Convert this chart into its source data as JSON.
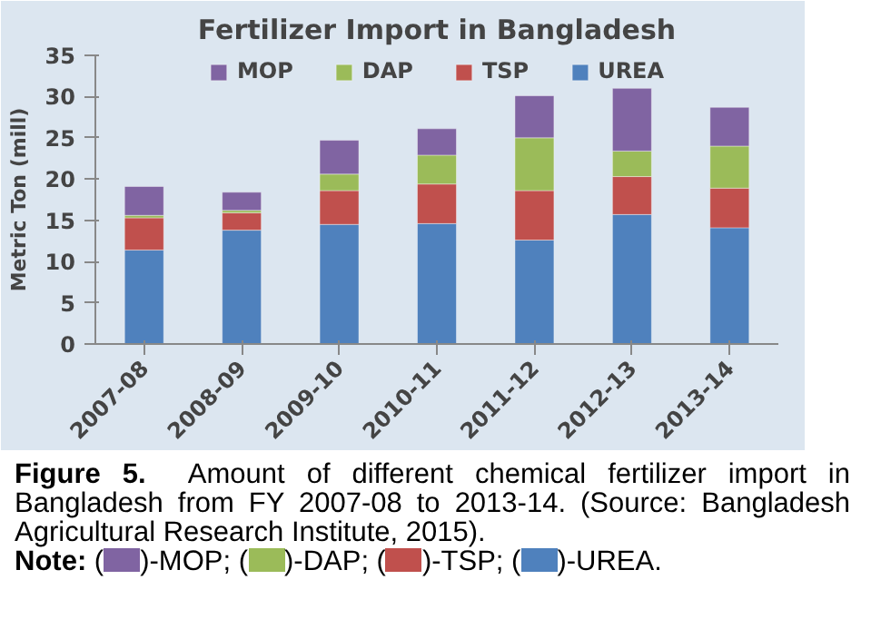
{
  "chart_data": {
    "type": "bar",
    "stacked": true,
    "title": "Fertilizer Import in Bangladesh",
    "ylabel": "Metric Ton (mill)",
    "categories": [
      "2007-08",
      "2008-09",
      "2009-10",
      "2010-11",
      "2011-12",
      "2012-13",
      "2013-14"
    ],
    "series": [
      {
        "name": "UREA",
        "color": "#4f81bd",
        "values": [
          11.4,
          13.8,
          14.5,
          14.6,
          12.6,
          15.7,
          14.1
        ]
      },
      {
        "name": "TSP",
        "color": "#c0504d",
        "values": [
          3.9,
          2.1,
          4.1,
          4.8,
          6.0,
          4.6,
          4.8
        ]
      },
      {
        "name": "DAP",
        "color": "#9bbb59",
        "values": [
          0.3,
          0.3,
          2.0,
          3.5,
          6.4,
          3.1,
          5.1
        ]
      },
      {
        "name": "MOP",
        "color": "#8064a2",
        "values": [
          3.5,
          2.2,
          4.1,
          3.2,
          5.1,
          7.6,
          4.7
        ]
      }
    ],
    "ylim": [
      0,
      35
    ],
    "yticks": [
      0,
      5,
      10,
      15,
      20,
      25,
      30,
      35
    ],
    "grid": false,
    "legend": "top",
    "annotations": [
      "Figure 5.",
      "Amount of different chemical fertilizer import in Bangladesh from FY 2007-08 to 2013-14. (Source: Bangladesh Agricultural Research Institute, 2015).",
      "Note:",
      "(",
      ")-MOP; (",
      ")-DAP; (",
      ")-TSP; (",
      ")-UREA."
    ]
  }
}
